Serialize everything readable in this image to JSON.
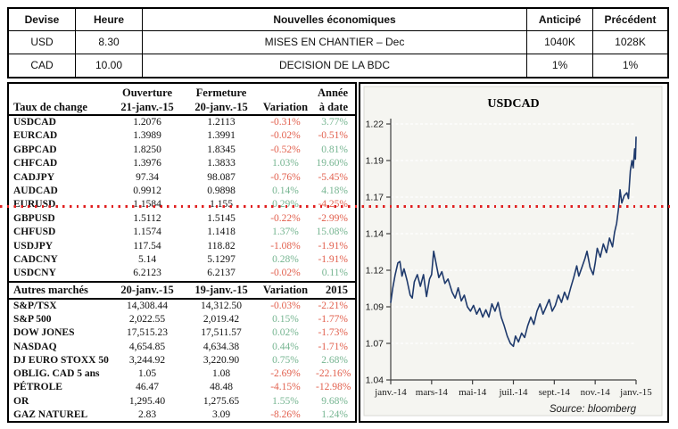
{
  "theme": {
    "positive": "#76b591",
    "negative": "#e2604e",
    "line_color": "#1f3a6c",
    "reference_color": "#e01f1f",
    "chart_bg": "#f5f5f1"
  },
  "news": {
    "headers": {
      "devise": "Devise",
      "heure": "Heure",
      "nouvelles": "Nouvelles économiques",
      "anticipe": "Anticipé",
      "precedent": "Précédent"
    },
    "rows": [
      {
        "devise": "USD",
        "heure": "8.30",
        "nouvelle": "MISES EN CHANTIER – Dec",
        "anticipe": "1040K",
        "precedent": "1028K"
      },
      {
        "devise": "CAD",
        "heure": "10.00",
        "nouvelle": "DECISION DE LA BDC",
        "anticipe": "1%",
        "precedent": "1%"
      }
    ]
  },
  "fx": {
    "header": {
      "title": "Taux de change",
      "open_label": "Ouverture",
      "open_date": "21-janv.-15",
      "close_label": "Fermeture",
      "close_date": "20-janv.-15",
      "variation": "Variation",
      "ytd_line1": "Année",
      "ytd_line2": "à date"
    },
    "rows": [
      [
        "USDCAD",
        "1.2076",
        "1.2113",
        "-0.31%",
        "3.77%"
      ],
      [
        "EURCAD",
        "1.3989",
        "1.3991",
        "-0.02%",
        "-0.51%"
      ],
      [
        "GBPCAD",
        "1.8250",
        "1.8345",
        "-0.52%",
        "0.81%"
      ],
      [
        "CHFCAD",
        "1.3976",
        "1.3833",
        "1.03%",
        "19.60%"
      ],
      [
        "CADJPY",
        "97.34",
        "98.087",
        "-0.76%",
        "-5.45%"
      ],
      [
        "AUDCAD",
        "0.9912",
        "0.9898",
        "0.14%",
        "4.18%"
      ],
      [
        "EURUSD",
        "1.1584",
        "1.155",
        "0.29%",
        "-4.25%"
      ],
      [
        "GBPUSD",
        "1.5112",
        "1.5145",
        "-0.22%",
        "-2.99%"
      ],
      [
        "CHFUSD",
        "1.1574",
        "1.1418",
        "1.37%",
        "15.08%"
      ],
      [
        "USDJPY",
        "117.54",
        "118.82",
        "-1.08%",
        "-1.91%"
      ],
      [
        "CADCNY",
        "5.14",
        "5.1297",
        "0.28%",
        "-1.91%"
      ],
      [
        "USDCNY",
        "6.2123",
        "6.2137",
        "-0.02%",
        "0.11%"
      ]
    ]
  },
  "markets": {
    "header": {
      "title": "Autres marchés",
      "col1": "20-janv.-15",
      "col2": "19-janv.-15",
      "col3": "Variation",
      "col4": "2015"
    },
    "rows": [
      [
        "S&P/TSX",
        "14,308.44",
        "14,312.50",
        "-0.03%",
        "-2.21%"
      ],
      [
        "S&P 500",
        "2,022.55",
        "2,019.42",
        "0.15%",
        "-1.77%"
      ],
      [
        "DOW JONES",
        "17,515.23",
        "17,511.57",
        "0.02%",
        "-1.73%"
      ],
      [
        "NASDAQ",
        "4,654.85",
        "4,634.38",
        "0.44%",
        "-1.71%"
      ],
      [
        "DJ EURO STOXX 50",
        "3,244.92",
        "3,220.90",
        "0.75%",
        "2.68%"
      ],
      [
        "OBLIG. CAD 5 ans",
        "1.05",
        "1.08",
        "-2.69%",
        "-22.16%"
      ],
      [
        "PÉTROLE",
        "46.47",
        "48.48",
        "-4.15%",
        "-12.98%"
      ],
      [
        "OR",
        "1,295.40",
        "1,275.65",
        "1.55%",
        "9.68%"
      ],
      [
        "GAZ NATUREL",
        "2.83",
        "3.09",
        "-8.26%",
        "1.24%"
      ]
    ]
  },
  "chart_data": {
    "type": "line",
    "title": "USDCAD",
    "source": "Source: bloomberg",
    "xlabel": "",
    "ylabel": "",
    "ylim": [
      1.04,
      1.215
    ],
    "grid": "horizontal-dashed",
    "legend": "none",
    "y_ticks": [
      {
        "label": "1.22",
        "value": 1.215
      },
      {
        "label": "1.19",
        "value": 1.19
      },
      {
        "label": "1.17",
        "value": 1.165
      },
      {
        "label": "1.14",
        "value": 1.14
      },
      {
        "label": "1.12",
        "value": 1.115
      },
      {
        "label": "1.09",
        "value": 1.09
      },
      {
        "label": "1.07",
        "value": 1.065
      },
      {
        "label": "1.04",
        "value": 1.04
      }
    ],
    "x_ticks": [
      {
        "label": "janv.-14",
        "month": 0
      },
      {
        "label": "mars-14",
        "month": 2
      },
      {
        "label": "mai-14",
        "month": 4
      },
      {
        "label": "juil.-14",
        "month": 6
      },
      {
        "label": "sept.-14",
        "month": 8
      },
      {
        "label": "nov.-14",
        "month": 10
      },
      {
        "label": "janv.-15",
        "month": 12
      }
    ],
    "reference_line": {
      "value": 1.16,
      "color": "#e01f1f",
      "style": "dotted",
      "extent": "full-image-width"
    },
    "series": [
      {
        "name": "USDCAD",
        "color": "#1f3a6c",
        "points": [
          [
            0.0,
            1.093
          ],
          [
            0.1,
            1.103
          ],
          [
            0.22,
            1.112
          ],
          [
            0.35,
            1.12
          ],
          [
            0.45,
            1.121
          ],
          [
            0.55,
            1.111
          ],
          [
            0.65,
            1.116
          ],
          [
            0.8,
            1.108
          ],
          [
            0.95,
            1.098
          ],
          [
            1.05,
            1.096
          ],
          [
            1.15,
            1.107
          ],
          [
            1.3,
            1.112
          ],
          [
            1.45,
            1.104
          ],
          [
            1.6,
            1.112
          ],
          [
            1.75,
            1.097
          ],
          [
            1.9,
            1.109
          ],
          [
            2.0,
            1.112
          ],
          [
            2.1,
            1.128
          ],
          [
            2.2,
            1.121
          ],
          [
            2.35,
            1.11
          ],
          [
            2.5,
            1.114
          ],
          [
            2.65,
            1.106
          ],
          [
            2.8,
            1.109
          ],
          [
            3.0,
            1.1
          ],
          [
            3.15,
            1.096
          ],
          [
            3.3,
            1.103
          ],
          [
            3.45,
            1.094
          ],
          [
            3.6,
            1.098
          ],
          [
            3.75,
            1.09
          ],
          [
            3.9,
            1.087
          ],
          [
            4.05,
            1.091
          ],
          [
            4.2,
            1.085
          ],
          [
            4.35,
            1.089
          ],
          [
            4.5,
            1.083
          ],
          [
            4.65,
            1.088
          ],
          [
            4.8,
            1.083
          ],
          [
            4.95,
            1.092
          ],
          [
            5.1,
            1.087
          ],
          [
            5.25,
            1.093
          ],
          [
            5.4,
            1.083
          ],
          [
            5.55,
            1.077
          ],
          [
            5.7,
            1.07
          ],
          [
            5.85,
            1.065
          ],
          [
            6.0,
            1.063
          ],
          [
            6.1,
            1.07
          ],
          [
            6.25,
            1.066
          ],
          [
            6.4,
            1.072
          ],
          [
            6.55,
            1.069
          ],
          [
            6.7,
            1.077
          ],
          [
            6.85,
            1.083
          ],
          [
            7.0,
            1.078
          ],
          [
            7.15,
            1.087
          ],
          [
            7.3,
            1.092
          ],
          [
            7.45,
            1.085
          ],
          [
            7.6,
            1.09
          ],
          [
            7.75,
            1.095
          ],
          [
            7.9,
            1.087
          ],
          [
            8.05,
            1.091
          ],
          [
            8.2,
            1.098
          ],
          [
            8.35,
            1.093
          ],
          [
            8.5,
            1.1
          ],
          [
            8.65,
            1.095
          ],
          [
            8.8,
            1.103
          ],
          [
            8.95,
            1.11
          ],
          [
            9.1,
            1.118
          ],
          [
            9.2,
            1.111
          ],
          [
            9.35,
            1.117
          ],
          [
            9.5,
            1.123
          ],
          [
            9.6,
            1.128
          ],
          [
            9.75,
            1.117
          ],
          [
            9.9,
            1.112
          ],
          [
            10.0,
            1.12
          ],
          [
            10.1,
            1.13
          ],
          [
            10.25,
            1.124
          ],
          [
            10.4,
            1.133
          ],
          [
            10.55,
            1.127
          ],
          [
            10.7,
            1.137
          ],
          [
            10.85,
            1.131
          ],
          [
            10.95,
            1.141
          ],
          [
            11.05,
            1.147
          ],
          [
            11.15,
            1.158
          ],
          [
            11.22,
            1.17
          ],
          [
            11.3,
            1.161
          ],
          [
            11.42,
            1.166
          ],
          [
            11.55,
            1.168
          ],
          [
            11.63,
            1.164
          ],
          [
            11.72,
            1.183
          ],
          [
            11.8,
            1.19
          ],
          [
            11.86,
            1.185
          ],
          [
            11.93,
            1.198
          ],
          [
            11.97,
            1.191
          ],
          [
            12.0,
            1.206
          ]
        ]
      }
    ]
  }
}
